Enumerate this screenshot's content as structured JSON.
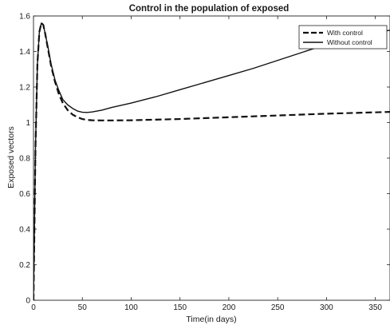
{
  "chart_data": {
    "type": "line",
    "title": "Control in the population of exposed",
    "xlabel": "Time(in days)",
    "ylabel": "Exposed vectors",
    "xlim": [
      0,
      365
    ],
    "ylim": [
      0,
      1.6
    ],
    "x_ticks": [
      0,
      50,
      100,
      150,
      200,
      250,
      300,
      350
    ],
    "y_ticks": [
      0,
      0.2,
      0.4,
      0.6,
      0.8,
      1,
      1.2,
      1.4,
      1.6
    ],
    "x_tick_labels": [
      "0",
      "50",
      "100",
      "150",
      "200",
      "250",
      "300",
      "350"
    ],
    "y_tick_labels": [
      "0",
      "0.2",
      "0.4",
      "0.6",
      "0.8",
      "1",
      "1.2",
      "1.4",
      "1.6"
    ],
    "grid": false,
    "legend_position": "top-right",
    "series": [
      {
        "name": "With control",
        "style": "dashed",
        "color": "#111111",
        "x": [
          0,
          2,
          4,
          6,
          8,
          10,
          12,
          15,
          18,
          22,
          26,
          30,
          35,
          40,
          45,
          50,
          55,
          60,
          70,
          80,
          100,
          150,
          200,
          250,
          300,
          365
        ],
        "y": [
          0,
          0.85,
          1.33,
          1.51,
          1.56,
          1.55,
          1.5,
          1.41,
          1.32,
          1.23,
          1.16,
          1.11,
          1.07,
          1.045,
          1.03,
          1.02,
          1.015,
          1.013,
          1.012,
          1.012,
          1.013,
          1.02,
          1.03,
          1.04,
          1.05,
          1.06
        ]
      },
      {
        "name": "Without control",
        "style": "solid",
        "color": "#111111",
        "x": [
          0,
          2,
          4,
          6,
          8,
          10,
          12,
          15,
          18,
          22,
          26,
          30,
          35,
          40,
          45,
          50,
          55,
          60,
          70,
          80,
          100,
          125,
          150,
          175,
          200,
          225,
          250,
          275,
          300,
          325,
          350,
          365
        ],
        "y": [
          0,
          0.85,
          1.33,
          1.51,
          1.56,
          1.55,
          1.5,
          1.42,
          1.33,
          1.24,
          1.18,
          1.13,
          1.1,
          1.08,
          1.065,
          1.058,
          1.057,
          1.06,
          1.07,
          1.085,
          1.11,
          1.145,
          1.185,
          1.225,
          1.265,
          1.305,
          1.35,
          1.395,
          1.44,
          1.48,
          1.505,
          1.52
        ]
      }
    ]
  }
}
